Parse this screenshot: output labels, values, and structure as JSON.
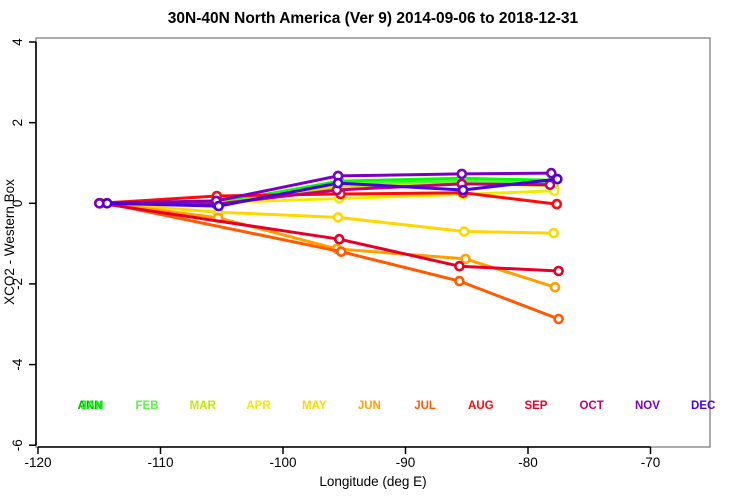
{
  "title": "30N-40N North America (Ver 9)   2014-09-06 to 2018-12-31",
  "chart_data": {
    "type": "line",
    "title": "30N-40N North America (Ver 9)   2014-09-06 to 2018-12-31",
    "xlabel": "Longitude (deg E)",
    "ylabel": "XCO2 - Western Box",
    "xlim": [
      -120,
      -70
    ],
    "ylim": [
      -6,
      4
    ],
    "grid": false,
    "x_ticks": [
      -120,
      -110,
      -100,
      -90,
      -80,
      -70
    ],
    "y_ticks": [
      4,
      2,
      0,
      -2,
      -4,
      -6
    ],
    "marker": "open-circle",
    "series": [
      {
        "name": "ANN",
        "color": "#00B400",
        "points": [
          [
            -115.0,
            0
          ],
          [
            -105.45,
            0.02
          ],
          [
            -95.45,
            0.52
          ],
          [
            -85.45,
            0.59
          ],
          [
            -77.95,
            0.55
          ]
        ]
      },
      {
        "name": "JAN",
        "color": "#00FF00",
        "points": [
          [
            -114.95,
            0
          ],
          [
            -105.4,
            0.0
          ],
          [
            -95.4,
            0.55
          ],
          [
            -85.4,
            0.62
          ],
          [
            -77.9,
            0.57
          ]
        ]
      },
      {
        "name": "FEB",
        "color": "#55FA3C",
        "points": [
          [
            -114.9,
            0
          ],
          [
            -105.4,
            -0.02
          ],
          [
            -95.4,
            0.48
          ],
          [
            -85.4,
            0.55
          ],
          [
            -77.9,
            0.5
          ]
        ]
      },
      {
        "name": "MAR",
        "color": "#BEEB00",
        "points": [
          [
            -114.85,
            0
          ],
          [
            -105.35,
            -0.04
          ],
          [
            -95.4,
            0.42
          ],
          [
            -85.35,
            0.48
          ],
          [
            -77.9,
            0.44
          ]
        ]
      },
      {
        "name": "APR",
        "color": "#EDED00",
        "points": [
          [
            -114.4,
            0
          ],
          [
            -105.3,
            0.02
          ],
          [
            -95.4,
            0.12
          ],
          [
            -85.3,
            0.22
          ],
          [
            -77.85,
            0.31
          ]
        ]
      },
      {
        "name": "MAY",
        "color": "#FFD700",
        "points": [
          [
            -114.4,
            0
          ],
          [
            -105.3,
            -0.22
          ],
          [
            -95.5,
            -0.35
          ],
          [
            -85.2,
            -0.7
          ],
          [
            -77.9,
            -0.74
          ]
        ]
      },
      {
        "name": "JUN",
        "color": "#FFA000",
        "points": [
          [
            -114.4,
            0
          ],
          [
            -105.3,
            -0.36
          ],
          [
            -95.6,
            -1.13
          ],
          [
            -85.1,
            -1.38
          ],
          [
            -77.8,
            -2.08
          ]
        ]
      },
      {
        "name": "JUL",
        "color": "#FF5A00",
        "points": [
          [
            -114.4,
            0
          ],
          [
            -95.25,
            -1.2
          ],
          [
            -85.6,
            -1.93
          ],
          [
            -77.5,
            -2.87
          ]
        ]
      },
      {
        "name": "AUG",
        "color": "#FF0A0A",
        "points": [
          [
            -114.95,
            0
          ],
          [
            -105.4,
            0.18
          ],
          [
            -95.3,
            0.23
          ],
          [
            -85.3,
            0.26
          ],
          [
            -77.65,
            -0.02
          ]
        ]
      },
      {
        "name": "SEP",
        "color": "#E4002B",
        "points": [
          [
            -114.95,
            0
          ],
          [
            -95.4,
            -0.89
          ],
          [
            -85.6,
            -1.56
          ],
          [
            -77.5,
            -1.68
          ]
        ]
      },
      {
        "name": "OCT",
        "color": "#C30078",
        "points": [
          [
            -115.0,
            0
          ],
          [
            -105.45,
            -0.02
          ],
          [
            -95.6,
            0.33
          ],
          [
            -85.4,
            0.48
          ],
          [
            -78.2,
            0.46
          ]
        ]
      },
      {
        "name": "NOV",
        "color": "#7D00BE",
        "points": [
          [
            -115.0,
            0
          ],
          [
            -105.45,
            0.06
          ],
          [
            -95.5,
            0.68
          ],
          [
            -85.4,
            0.73
          ],
          [
            -78.1,
            0.75
          ]
        ]
      },
      {
        "name": "DEC",
        "color": "#4B00DC",
        "points": [
          [
            -114.35,
            0
          ],
          [
            -105.25,
            -0.07
          ],
          [
            -95.5,
            0.5
          ],
          [
            -85.3,
            0.33
          ],
          [
            -77.6,
            0.6
          ]
        ]
      }
    ],
    "month_labels": {
      "y_value": -5.1,
      "items": [
        {
          "label": "ANN",
          "color": "#00B400",
          "lon": -115.75
        },
        {
          "label": "JAN",
          "color": "#00FF00",
          "lon": -115.6
        },
        {
          "label": "FEB",
          "color": "#55FA3C",
          "lon": -111.1
        },
        {
          "label": "MAR",
          "color": "#BEEB00",
          "lon": -106.55
        },
        {
          "label": "APR",
          "color": "#EDED00",
          "lon": -102.0
        },
        {
          "label": "MAY",
          "color": "#FFD700",
          "lon": -97.45
        },
        {
          "label": "JUN",
          "color": "#FFA000",
          "lon": -92.95
        },
        {
          "label": "JUL",
          "color": "#FF5A00",
          "lon": -88.4
        },
        {
          "label": "AUG",
          "color": "#FF0A0A",
          "lon": -83.85
        },
        {
          "label": "SEP",
          "color": "#E4002B",
          "lon": -79.35
        },
        {
          "label": "OCT",
          "color": "#C30078",
          "lon": -74.8
        },
        {
          "label": "NOV",
          "color": "#7D00BE",
          "lon": -70.25
        },
        {
          "label": "DEC",
          "color": "#4B00DC",
          "lon": -65.7
        }
      ]
    }
  }
}
